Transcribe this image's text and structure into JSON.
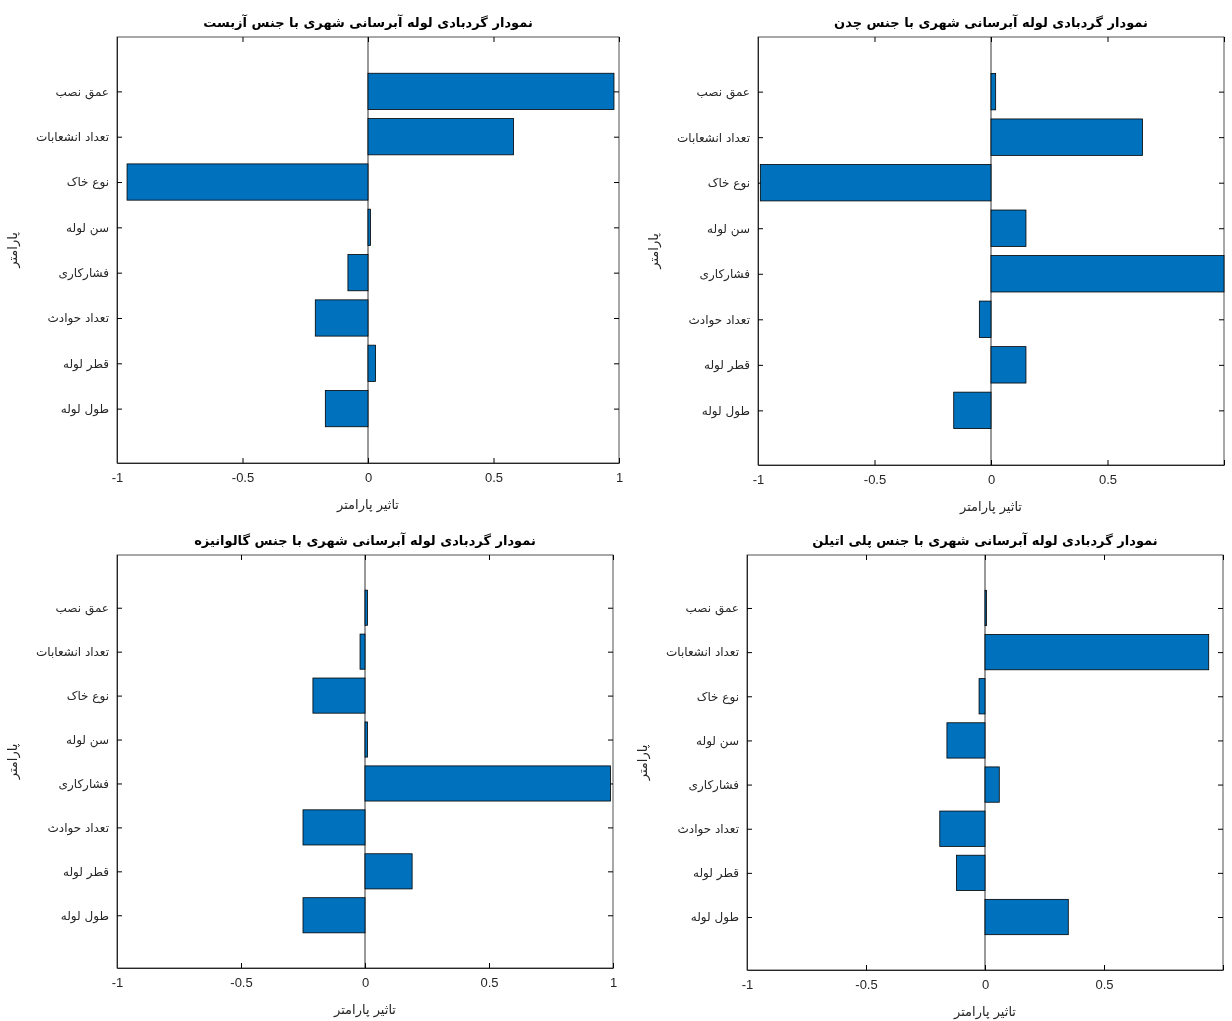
{
  "chart_data": [
    {
      "type": "bar",
      "orientation": "horizontal",
      "title": "نمودار گردبادی لوله آبرسانی شهری با جنس آزبست",
      "xlabel": "تاثیر پارامتر",
      "ylabel": "پارامتر",
      "categories": [
        "عمق نصب",
        "تعداد انشعابات",
        "نوع خاک",
        "سن لوله",
        "فشارکاری",
        "تعداد حوادث",
        "قطر لوله",
        "طول لوله"
      ],
      "values": [
        0.98,
        0.58,
        -0.96,
        0.01,
        -0.08,
        -0.21,
        0.03,
        -0.17
      ],
      "color": "#0072bd",
      "xlim": [
        -1,
        1
      ],
      "xticks": [
        -1,
        -0.5,
        0,
        0.5,
        1
      ]
    },
    {
      "type": "bar",
      "orientation": "horizontal",
      "title": "نمودار گردبادی لوله آبرسانی شهری با جنس چدن",
      "xlabel": "تاثیر پارامتر",
      "ylabel": "پارامتر",
      "categories": [
        "عمق نصب",
        "تعداد انشعابات",
        "نوع خاک",
        "سن لوله",
        "فشارکاری",
        "تعداد حوادث",
        "قطر لوله",
        "طول لوله"
      ],
      "values": [
        0.02,
        0.65,
        -0.99,
        0.15,
        1.0,
        -0.05,
        0.15,
        -0.16
      ],
      "color": "#0072bd",
      "xlim": [
        -1,
        1
      ],
      "xticks": [
        -1,
        -0.5,
        0,
        0.5,
        {
          "value": 1,
          "label": null
        }
      ]
    },
    {
      "type": "bar",
      "orientation": "horizontal",
      "title": "نمودار گردبادی لوله آبرسانی شهری با جنس گالوانیزه",
      "xlabel": "تاثیر پارامتر",
      "ylabel": "پارامتر",
      "categories": [
        "عمق نصب",
        "تعداد انشعابات",
        "نوع خاک",
        "سن لوله",
        "فشارکاری",
        "تعداد حوادث",
        "قطر لوله",
        "طول لوله"
      ],
      "values": [
        0.01,
        -0.02,
        -0.21,
        0.01,
        0.99,
        -0.25,
        0.19,
        -0.25
      ],
      "color": "#0072bd",
      "xlim": [
        -1,
        1
      ],
      "xticks": [
        -1,
        -0.5,
        0,
        0.5,
        1
      ]
    },
    {
      "type": "bar",
      "orientation": "horizontal",
      "title": "نمودار گردبادی لوله آبرسانی شهری با جنس پلی اتیلن",
      "xlabel": "تاثیر  پارامتر",
      "ylabel": "پارامتر",
      "categories": [
        "عمق نصب",
        "تعداد انشعابات",
        "نوع خاک",
        "سن لوله",
        "فشارکاری",
        "تعداد حوادث",
        "قطر لوله",
        "طول لوله"
      ],
      "values": [
        0.006,
        0.94,
        -0.025,
        -0.16,
        0.06,
        -0.19,
        -0.12,
        0.35
      ],
      "color": "#0072bd",
      "xlim": [
        -1,
        1
      ],
      "xticks": [
        -1,
        -0.5,
        0,
        0.5,
        {
          "value": 1,
          "label": null
        }
      ]
    }
  ]
}
